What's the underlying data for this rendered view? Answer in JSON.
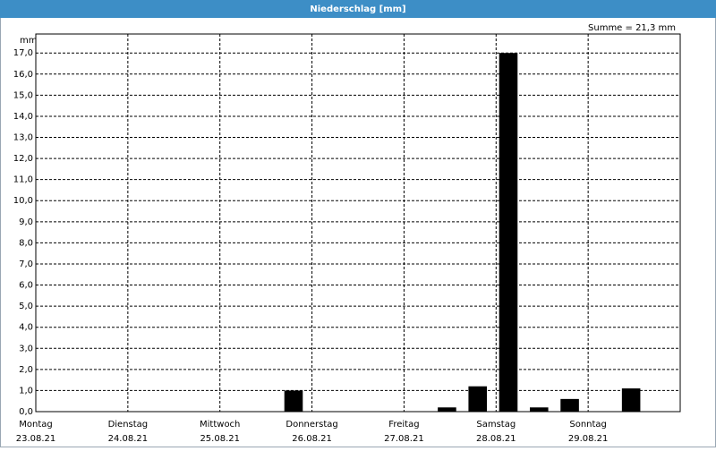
{
  "chart_data": {
    "type": "bar",
    "title": "Niederschlag [mm]",
    "annotation": "Summe = 21,3 mm",
    "y_label": "mm",
    "categories": [
      "Montag",
      null,
      null,
      "Dienstag",
      null,
      null,
      "Mittwoch",
      null,
      null,
      "Donnerstag",
      null,
      null,
      "Freitag",
      null,
      null,
      "Samstag",
      null,
      null,
      "Sonntag",
      null,
      null
    ],
    "category_dates": [
      "23.08.21",
      null,
      null,
      "24.08.21",
      null,
      null,
      "25.08.21",
      null,
      null,
      "26.08.21",
      null,
      null,
      "27.08.21",
      null,
      null,
      "28.08.21",
      null,
      null,
      "29.08.21",
      null,
      null
    ],
    "values": [
      0,
      0,
      0,
      0,
      0,
      0,
      0,
      0,
      1.0,
      0,
      0,
      0,
      0,
      0.2,
      1.2,
      17.0,
      0.2,
      0.6,
      0,
      1.1,
      0
    ],
    "color": "#000000",
    "ylim": [
      0,
      17.9
    ],
    "yticks": [
      {
        "value": 0,
        "label": "0,0"
      },
      {
        "value": 1,
        "label": "1,0"
      },
      {
        "value": 2,
        "label": "2,0"
      },
      {
        "value": 3,
        "label": "3,0"
      },
      {
        "value": 4,
        "label": "4,0"
      },
      {
        "value": 5,
        "label": "5,0"
      },
      {
        "value": 6,
        "label": "6,0"
      },
      {
        "value": 7,
        "label": "7,0"
      },
      {
        "value": 8,
        "label": "8,0"
      },
      {
        "value": 9,
        "label": "9,0"
      },
      {
        "value": 10,
        "label": "10,0"
      },
      {
        "value": 11,
        "label": "11,0"
      },
      {
        "value": 12,
        "label": "12,0"
      },
      {
        "value": 13,
        "label": "13,0"
      },
      {
        "value": 14,
        "label": "14,0"
      },
      {
        "value": 15,
        "label": "15,0"
      },
      {
        "value": 16,
        "label": "16,0"
      },
      {
        "value": 17,
        "label": "17,0"
      }
    ],
    "grid": true
  }
}
